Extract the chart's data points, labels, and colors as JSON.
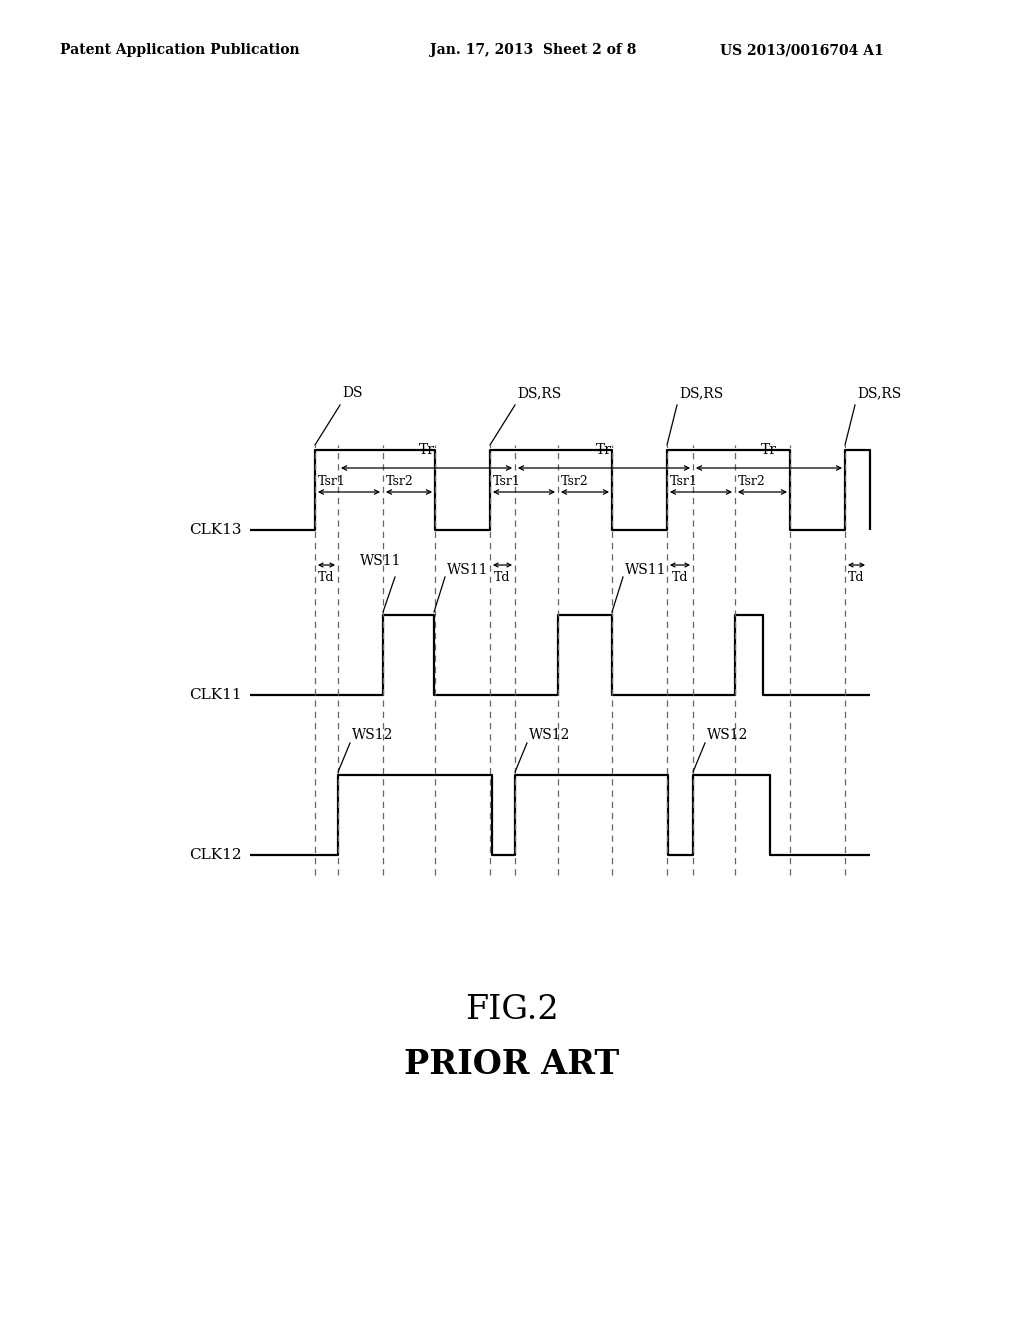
{
  "bg_color": "#ffffff",
  "line_color": "#000000",
  "dashed_color": "#666666",
  "header_left": "Patent Application Publication",
  "header_center": "Jan. 17, 2013  Sheet 2 of 8",
  "header_right": "US 2013/0016704 A1",
  "fig_label": "FIG.2",
  "fig_sublabel": "PRIOR ART",
  "clk13_label": "CLK13",
  "clk11_label": "CLK11",
  "clk12_label": "CLK12"
}
